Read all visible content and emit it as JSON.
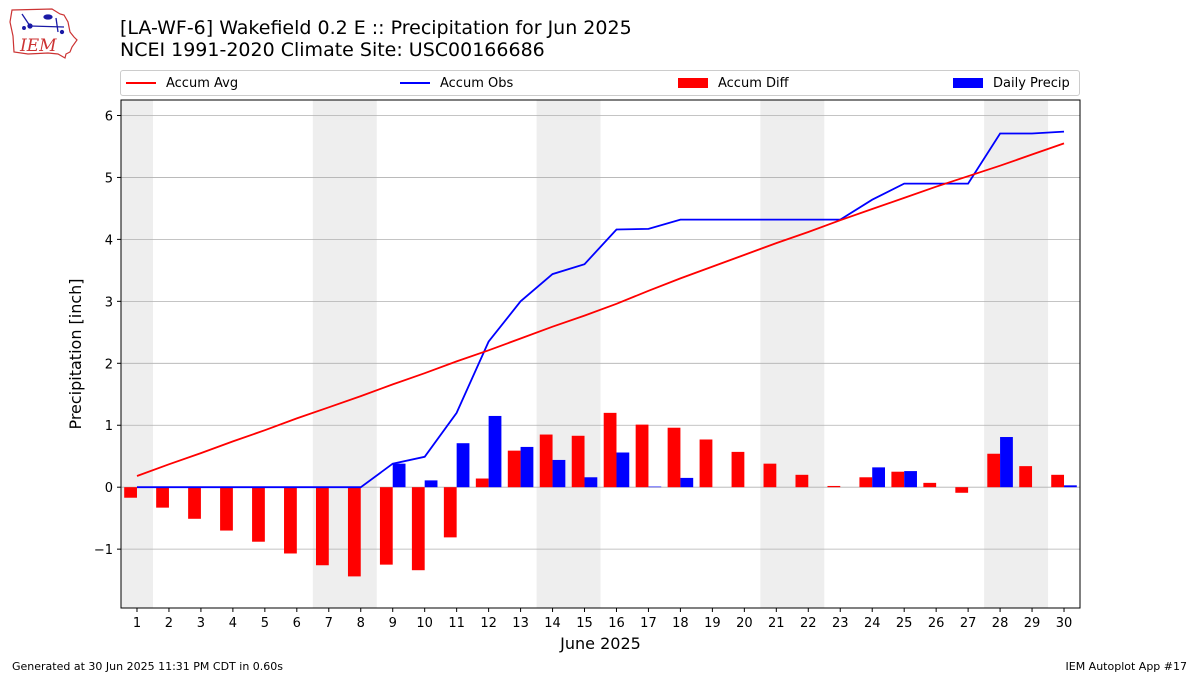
{
  "header": {
    "title_line1": "[LA-WF-6] Wakefield 0.2 E :: Precipitation for Jun 2025",
    "title_line2": "NCEI 1991-2020 Climate Site: USC00166686",
    "logo_text": "IEM"
  },
  "legend": [
    {
      "label": "Accum Avg",
      "kind": "line",
      "color": "#ff0000"
    },
    {
      "label": "Accum Obs",
      "kind": "line",
      "color": "#0000ff"
    },
    {
      "label": "Accum Diff",
      "kind": "bar",
      "color": "#ff0000"
    },
    {
      "label": "Daily Precip",
      "kind": "bar",
      "color": "#0000ff"
    }
  ],
  "footer": {
    "left": "Generated at 30 Jun 2025 11:31 PM CDT in 0.60s",
    "right": "IEM Autoplot App #17"
  },
  "chart_data": {
    "type": "bar",
    "xlabel": "June 2025",
    "ylabel": "Precipitation [inch]",
    "ylim": [
      -1.95,
      6.25
    ],
    "xlim": [
      0.5,
      30.5
    ],
    "yticks": [
      -1,
      0,
      1,
      2,
      3,
      4,
      5,
      6
    ],
    "ytick_labels": [
      "−1",
      "0",
      "1",
      "2",
      "3",
      "4",
      "5",
      "6"
    ],
    "x": [
      1,
      2,
      3,
      4,
      5,
      6,
      7,
      8,
      9,
      10,
      11,
      12,
      13,
      14,
      15,
      16,
      17,
      18,
      19,
      20,
      21,
      22,
      23,
      24,
      25,
      26,
      27,
      28,
      29,
      30
    ],
    "grid": "y",
    "weekend_bands": [
      [
        0.5,
        1.5
      ],
      [
        6.5,
        8.5
      ],
      [
        13.5,
        15.5
      ],
      [
        20.5,
        22.5
      ],
      [
        27.5,
        29.5
      ]
    ],
    "series": [
      {
        "name": "Accum Avg",
        "kind": "line",
        "color": "#ff0000",
        "values": [
          0.18,
          0.37,
          0.55,
          0.74,
          0.92,
          1.11,
          1.29,
          1.47,
          1.66,
          1.84,
          2.03,
          2.21,
          2.4,
          2.59,
          2.77,
          2.96,
          3.17,
          3.37,
          3.56,
          3.75,
          3.94,
          4.12,
          4.31,
          4.49,
          4.67,
          4.85,
          5.02,
          5.19,
          5.37,
          5.55
        ]
      },
      {
        "name": "Accum Obs",
        "kind": "line",
        "color": "#0000ff",
        "values": [
          0,
          0,
          0,
          0,
          0,
          0,
          0,
          0,
          0.38,
          0.49,
          1.2,
          2.35,
          3.0,
          3.44,
          3.6,
          4.16,
          4.17,
          4.32,
          4.32,
          4.32,
          4.32,
          4.32,
          4.32,
          4.64,
          4.9,
          4.9,
          4.9,
          5.71,
          5.71,
          5.74
        ]
      },
      {
        "name": "Accum Diff",
        "kind": "bar",
        "color": "#ff0000",
        "values": [
          -0.17,
          -0.33,
          -0.51,
          -0.7,
          -0.88,
          -1.07,
          -1.26,
          -1.44,
          -1.25,
          -1.34,
          -0.81,
          0.14,
          0.59,
          0.85,
          0.83,
          1.2,
          1.01,
          0.96,
          0.77,
          0.57,
          0.38,
          0.2,
          0.02,
          0.16,
          0.25,
          0.07,
          -0.09,
          0.54,
          0.34,
          0.2
        ]
      },
      {
        "name": "Daily Precip",
        "kind": "bar",
        "color": "#0000ff",
        "values": [
          0,
          0,
          0,
          0,
          0,
          0,
          0,
          0,
          0.38,
          0.11,
          0.71,
          1.15,
          0.65,
          0.44,
          0.16,
          0.56,
          0.01,
          0.15,
          0,
          0,
          0,
          0,
          0,
          0.32,
          0.26,
          0,
          0,
          0.81,
          0,
          0.03
        ]
      }
    ]
  }
}
